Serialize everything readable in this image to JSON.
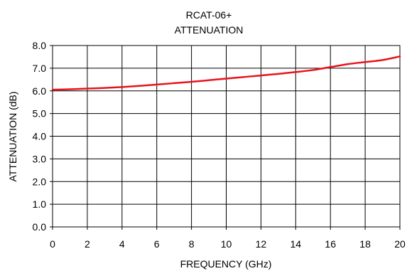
{
  "chart_data": {
    "type": "line",
    "title": [
      "RCAT-06+",
      "ATTENUATION"
    ],
    "xlabel": "FREQUENCY (GHz)",
    "ylabel": "ATTENUATION (dB)",
    "xlim": [
      0,
      20
    ],
    "ylim": [
      0,
      8
    ],
    "x_ticks": [
      0,
      2,
      4,
      6,
      8,
      10,
      12,
      14,
      16,
      18,
      20
    ],
    "y_ticks": [
      "0.0",
      "1.0",
      "2.0",
      "3.0",
      "4.0",
      "5.0",
      "6.0",
      "7.0",
      "8.0"
    ],
    "grid": true,
    "legend": "none",
    "series": [
      {
        "color": "#e8141c",
        "x": [
          0,
          1,
          2,
          3,
          4,
          5,
          6,
          7,
          8,
          9,
          10,
          11,
          12,
          13,
          14,
          15,
          16,
          17,
          18,
          19,
          20
        ],
        "y": [
          6.05,
          6.07,
          6.1,
          6.13,
          6.17,
          6.22,
          6.28,
          6.34,
          6.4,
          6.47,
          6.54,
          6.61,
          6.68,
          6.75,
          6.83,
          6.92,
          7.05,
          7.18,
          7.27,
          7.36,
          7.52
        ]
      }
    ]
  }
}
